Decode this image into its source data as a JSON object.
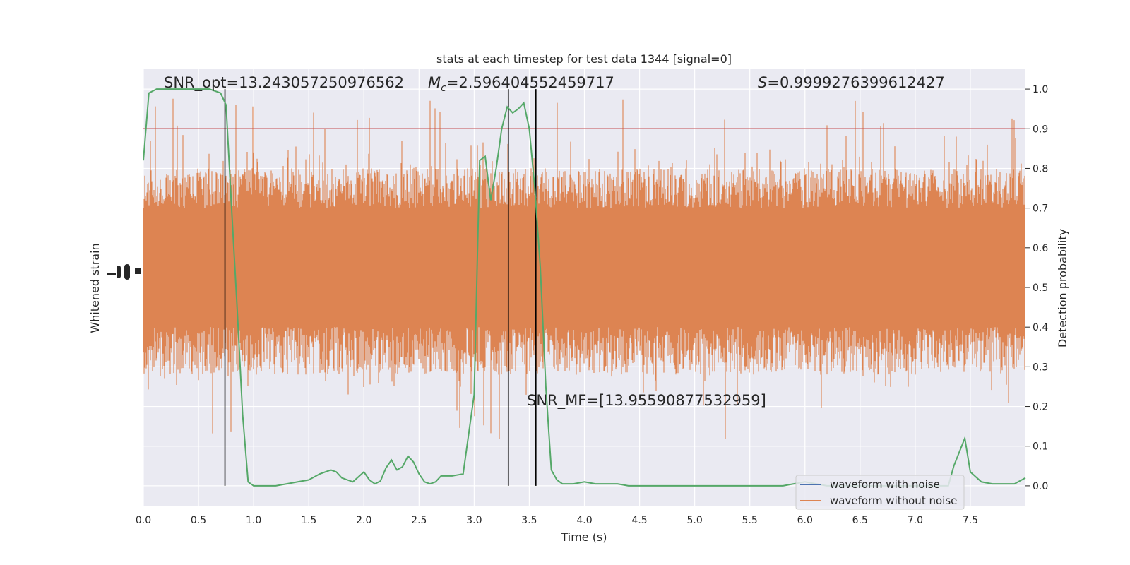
{
  "chart_data": {
    "type": "line",
    "title": "stats at each timestep for test data 1344 [signal=0]",
    "xlabel": "Time (s)",
    "ylabel_left": "Whitened strain",
    "ylabel_right": "Detection probability",
    "xlim": [
      0,
      8
    ],
    "xticks": [
      "0.0",
      "0.5",
      "1.0",
      "1.5",
      "2.0",
      "2.5",
      "3.0",
      "3.5",
      "4.0",
      "4.5",
      "5.0",
      "5.5",
      "6.0",
      "6.5",
      "7.0",
      "7.5"
    ],
    "ylim_right": [
      -0.05,
      1.05
    ],
    "yticks_right": [
      "0.0",
      "0.1",
      "0.2",
      "0.3",
      "0.4",
      "0.5",
      "0.6",
      "0.7",
      "0.8",
      "0.9",
      "1.0"
    ],
    "grid": true,
    "legend_position": "lower-right",
    "annotations": {
      "snr_opt": "SNR_opt=13.243057250976562",
      "mc_symbol": "M",
      "mc_subscript": "c",
      "mc_value": "=2.596404552459717",
      "s_symbol": "S",
      "s_value": "=0.9999276399612427",
      "snr_mf": "SNR_MF=[13.95590877532959]"
    },
    "threshold": 0.9,
    "vertical_lines": [
      0.74,
      3.31,
      3.56
    ],
    "series": [
      {
        "name": "waveform with noise",
        "color": "#4c72b0"
      },
      {
        "name": "waveform without noise",
        "color": "#dd8452"
      },
      {
        "color": "#55a868",
        "x": [
          0.0,
          0.05,
          0.12,
          0.2,
          0.3,
          0.4,
          0.5,
          0.6,
          0.7,
          0.75,
          0.8,
          0.85,
          0.9,
          0.95,
          1.0,
          1.1,
          1.2,
          1.3,
          1.4,
          1.5,
          1.6,
          1.7,
          1.75,
          1.8,
          1.9,
          2.0,
          2.05,
          2.1,
          2.15,
          2.2,
          2.25,
          2.3,
          2.35,
          2.4,
          2.45,
          2.5,
          2.55,
          2.6,
          2.65,
          2.7,
          2.8,
          2.9,
          3.0,
          3.05,
          3.1,
          3.15,
          3.2,
          3.25,
          3.3,
          3.35,
          3.4,
          3.45,
          3.5,
          3.55,
          3.6,
          3.65,
          3.7,
          3.75,
          3.8,
          3.85,
          3.9,
          4.0,
          4.1,
          4.2,
          4.3,
          4.4,
          4.5,
          4.6,
          4.7,
          4.8,
          4.9,
          5.0,
          5.2,
          5.4,
          5.6,
          5.8,
          6.0,
          6.2,
          6.4,
          6.6,
          6.8,
          7.0,
          7.1,
          7.2,
          7.3,
          7.35,
          7.4,
          7.45,
          7.5,
          7.6,
          7.7,
          7.8,
          7.9,
          8.0
        ],
        "values": [
          0.82,
          0.99,
          1.0,
          1.0,
          1.0,
          1.0,
          1.0,
          1.0,
          0.99,
          0.96,
          0.7,
          0.45,
          0.18,
          0.01,
          0.0,
          0.0,
          0.0,
          0.005,
          0.01,
          0.015,
          0.03,
          0.04,
          0.035,
          0.02,
          0.01,
          0.035,
          0.015,
          0.005,
          0.012,
          0.045,
          0.065,
          0.04,
          0.048,
          0.075,
          0.06,
          0.03,
          0.01,
          0.005,
          0.01,
          0.025,
          0.025,
          0.03,
          0.23,
          0.82,
          0.83,
          0.72,
          0.8,
          0.9,
          0.955,
          0.94,
          0.95,
          0.965,
          0.9,
          0.75,
          0.55,
          0.25,
          0.04,
          0.015,
          0.005,
          0.005,
          0.005,
          0.01,
          0.005,
          0.005,
          0.005,
          0.0,
          0.0,
          0.0,
          0.0,
          0.0,
          0.0,
          0.0,
          0.0,
          0.0,
          0.0,
          0.0,
          0.01,
          0.0,
          0.0,
          0.0,
          0.0,
          0.0,
          0.0,
          0.0,
          0.0,
          0.05,
          0.085,
          0.12,
          0.035,
          0.01,
          0.005,
          0.005,
          0.005,
          0.02
        ]
      }
    ]
  }
}
